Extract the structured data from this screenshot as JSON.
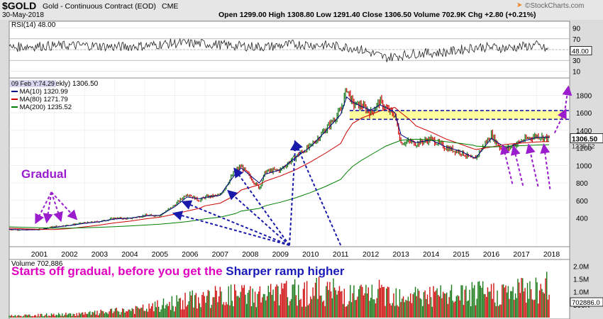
{
  "header": {
    "symbol": "$GOLD",
    "name": "Gold - Continuous Contract (EOD)",
    "exchange": "CME",
    "date": "30-May-2018",
    "quote": "Open 1299.00  High 1308.80  Low 1291.40  Close 1306.50  Volume 702.9K  Chg +2.80 (+0.21%)",
    "brand": "©StockCharts.com",
    "brand_icon": "arrow-icon"
  },
  "rsi_legend": "RSI(14) 48.00",
  "price_legend": {
    "title": "(Weekly) 1306.50",
    "tooltip": "09 Feb Y:74.29",
    "ma10": "MA(10) 1320.99",
    "ma80": "MA(80) 1271.79",
    "ma200": "MA(200) 1235.52"
  },
  "volume_legend": "Volume 702,886",
  "annotations": {
    "gradual": "Gradual",
    "line_part1": "Starts off gradual, before you get the",
    "line_part2": "Sharper ramp higher"
  },
  "colors": {
    "up": "#1a7a1a",
    "down": "#d01010",
    "ma10": "#000080",
    "ma80": "#cc0000",
    "ma200": "#008000",
    "accent": "#9a1ccc",
    "resistance": "#1a1aaa",
    "band": "#ffff8a",
    "text_magenta": "#e000c0",
    "text_blue": "#1a1ab8"
  },
  "chart_data": [
    {
      "type": "line",
      "title": "RSI(14) 48.00",
      "ylim": [
        0,
        100
      ],
      "yticks": [
        90,
        70,
        50,
        30,
        10
      ],
      "last_value_label": "48.00",
      "series": [
        {
          "name": "RSI(14)",
          "x": [
            2000.5,
            2001,
            2002,
            2003,
            2004,
            2005,
            2006,
            2007,
            2008,
            2009,
            2010,
            2011,
            2012,
            2013,
            2014,
            2015,
            2016,
            2017,
            2018,
            2018.42
          ],
          "values": [
            53,
            56,
            57,
            58,
            55,
            57,
            62,
            61,
            57,
            55,
            60,
            58,
            53,
            35,
            43,
            45,
            55,
            53,
            58,
            48
          ]
        }
      ]
    },
    {
      "type": "line",
      "title": "(Weekly) 1306.50",
      "ylim": [
        90,
        1980
      ],
      "yticks": [
        400,
        600,
        800,
        1000,
        1200,
        1400,
        1600,
        1800
      ],
      "last_value_label": "1306.50",
      "right_label_2": "1235.52",
      "x_tick_labels": [
        "2001",
        "2002",
        "2003",
        "2004",
        "2005",
        "2006",
        "2007",
        "2008",
        "2009",
        "2010",
        "2011",
        "2012",
        "2013",
        "2014",
        "2015",
        "2016",
        "2017",
        "2018"
      ],
      "resistance_levels": [
        1525,
        1625
      ],
      "x": [
        2000.5,
        2001,
        2001.5,
        2002,
        2002.5,
        2003,
        2003.5,
        2004,
        2004.5,
        2005,
        2005.5,
        2006,
        2006.4,
        2006.8,
        2007,
        2007.5,
        2008,
        2008.2,
        2008.8,
        2009,
        2009.5,
        2010,
        2010.5,
        2011,
        2011.5,
        2011.7,
        2011.9,
        2012.2,
        2012.5,
        2012.8,
        2013,
        2013.3,
        2013.5,
        2013.8,
        2014,
        2014.5,
        2015,
        2015.5,
        2015.9,
        2016,
        2016.5,
        2016.8,
        2017,
        2017.5,
        2018,
        2018.42
      ],
      "series": [
        {
          "name": "Price",
          "values": [
            270,
            265,
            270,
            305,
            320,
            345,
            360,
            400,
            395,
            430,
            430,
            550,
            680,
            600,
            640,
            660,
            940,
            990,
            740,
            930,
            950,
            1100,
            1220,
            1410,
            1620,
            1880,
            1700,
            1680,
            1600,
            1730,
            1650,
            1570,
            1260,
            1270,
            1250,
            1300,
            1200,
            1150,
            1060,
            1100,
            1350,
            1200,
            1180,
            1280,
            1340,
            1306
          ]
        },
        {
          "name": "MA(10)",
          "values": [
            272,
            266,
            268,
            295,
            315,
            340,
            358,
            390,
            398,
            425,
            432,
            530,
            640,
            620,
            635,
            660,
            900,
            970,
            800,
            900,
            950,
            1090,
            1210,
            1390,
            1580,
            1780,
            1720,
            1670,
            1630,
            1690,
            1660,
            1600,
            1350,
            1290,
            1260,
            1290,
            1210,
            1160,
            1090,
            1090,
            1310,
            1240,
            1200,
            1270,
            1320,
            1321
          ]
        },
        {
          "name": "MA(80)",
          "values": [
            285,
            278,
            272,
            270,
            280,
            300,
            320,
            345,
            365,
            390,
            410,
            445,
            480,
            510,
            540,
            570,
            660,
            720,
            780,
            820,
            880,
            950,
            1040,
            1140,
            1250,
            1380,
            1480,
            1540,
            1580,
            1620,
            1640,
            1660,
            1600,
            1520,
            1450,
            1380,
            1300,
            1240,
            1190,
            1180,
            1210,
            1230,
            1240,
            1255,
            1268,
            1272
          ]
        },
        {
          "name": "MA(200)",
          "values": [
            300,
            295,
            290,
            285,
            285,
            290,
            295,
            302,
            310,
            320,
            330,
            345,
            360,
            378,
            392,
            410,
            450,
            480,
            510,
            540,
            580,
            630,
            690,
            760,
            840,
            920,
            990,
            1060,
            1120,
            1180,
            1220,
            1260,
            1285,
            1295,
            1298,
            1290,
            1270,
            1250,
            1230,
            1220,
            1210,
            1215,
            1220,
            1225,
            1232,
            1236
          ]
        }
      ]
    },
    {
      "type": "bar",
      "title": "Volume 702,886",
      "ylim": [
        0,
        2200000
      ],
      "yticks_labels": [
        "2.0M",
        "1.5M",
        "1.0M",
        "500K"
      ],
      "yticks_values": [
        2000000,
        1500000,
        1000000,
        500000
      ],
      "last_value_label": "702886.0",
      "x": [
        2001,
        2002,
        2003,
        2004,
        2005,
        2006,
        2007,
        2008,
        2009,
        2010,
        2011,
        2012,
        2013,
        2014,
        2015,
        2016,
        2017,
        2018
      ],
      "values": [
        80000,
        120000,
        150000,
        250000,
        350000,
        600000,
        800000,
        900000,
        900000,
        1000000,
        1100000,
        900000,
        1000000,
        900000,
        850000,
        950000,
        1000000,
        1200000
      ]
    }
  ]
}
